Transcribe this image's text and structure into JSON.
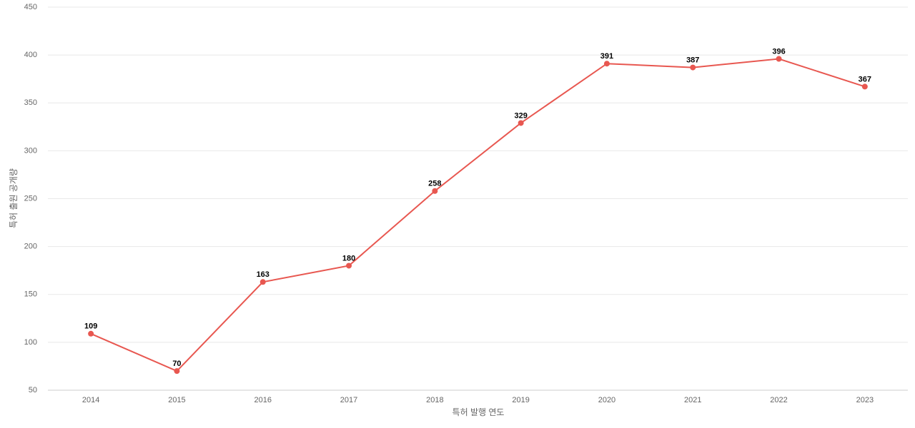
{
  "chart_data": {
    "type": "line",
    "x_label": "특허 발행 연도",
    "y_label": "특허 출원 공개량",
    "categories": [
      "2014",
      "2015",
      "2016",
      "2017",
      "2018",
      "2019",
      "2020",
      "2021",
      "2022",
      "2023"
    ],
    "series": [
      {
        "name": "특허 출원 공개량",
        "color": "#e85750",
        "values": [
          109,
          70,
          163,
          180,
          258,
          329,
          391,
          387,
          396,
          367
        ]
      }
    ],
    "ylim": [
      50,
      450
    ],
    "yticks": [
      50,
      100,
      150,
      200,
      250,
      300,
      350,
      400,
      450
    ],
    "grid": true
  }
}
